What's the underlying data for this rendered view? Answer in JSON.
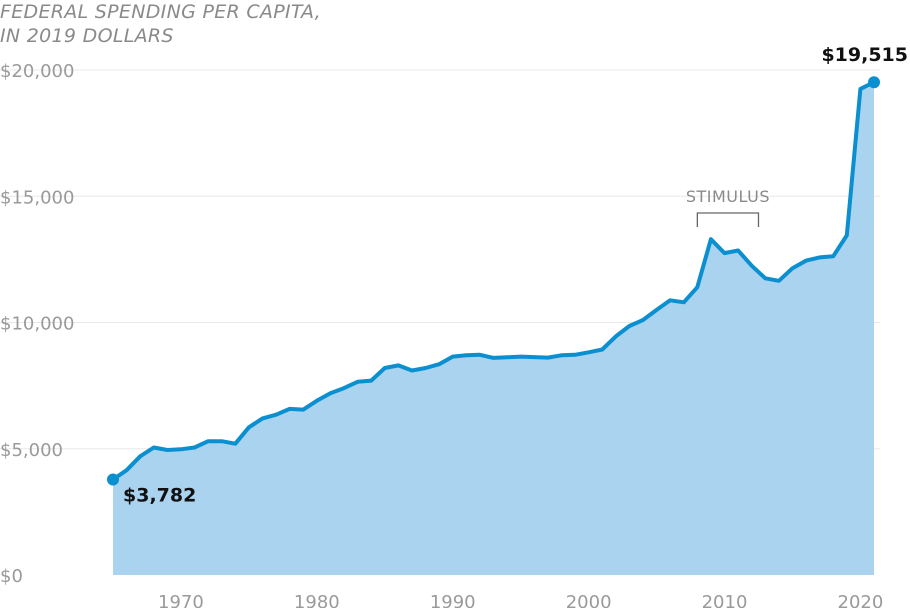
{
  "title_line1": "FEDERAL SPENDING PER CAPITA,",
  "title_line2": "IN 2019 DOLLARS",
  "colors": {
    "line": "#0a8fd0",
    "fill": "#a9d3ef",
    "grid": "#e8e8e8",
    "tick": "#9a9a9a"
  },
  "chart_data": {
    "type": "area",
    "title": "FEDERAL SPENDING PER CAPITA, IN 2019 DOLLARS",
    "xlabel": "",
    "ylabel": "",
    "xlim": [
      1965,
      2021
    ],
    "ylim": [
      0,
      20000
    ],
    "y_ticks": [
      0,
      5000,
      10000,
      15000,
      20000
    ],
    "y_tick_labels": [
      "$0",
      "$5,000",
      "$10,000",
      "$15,000",
      "$20,000"
    ],
    "x_ticks": [
      1970,
      1980,
      1990,
      2000,
      2010,
      2020
    ],
    "x_tick_labels": [
      "1970",
      "1980",
      "1990",
      "2000",
      "2010",
      "2020"
    ],
    "grid": true,
    "series": [
      {
        "x": [
          1965,
          1966,
          1967,
          1968,
          1969,
          1970,
          1971,
          1972,
          1973,
          1974,
          1975,
          1976,
          1977,
          1978,
          1979,
          1980,
          1981,
          1982,
          1983,
          1984,
          1985,
          1986,
          1987,
          1988,
          1989,
          1990,
          1991,
          1992,
          1993,
          1994,
          1995,
          1996,
          1997,
          1998,
          1999,
          2000,
          2001,
          2002,
          2003,
          2004,
          2005,
          2006,
          2007,
          2008,
          2009,
          2010,
          2011,
          2012,
          2013,
          2014,
          2015,
          2016,
          2017,
          2018,
          2019,
          2020,
          2021
        ],
        "values": [
          3782,
          4150,
          4700,
          5050,
          4950,
          4980,
          5050,
          5300,
          5300,
          5200,
          5850,
          6200,
          6350,
          6580,
          6550,
          6900,
          7200,
          7400,
          7650,
          7700,
          8200,
          8300,
          8100,
          8200,
          8350,
          8650,
          8700,
          8720,
          8600,
          8620,
          8650,
          8630,
          8610,
          8700,
          8720,
          8820,
          8930,
          9450,
          9860,
          10100,
          10500,
          10880,
          10800,
          11400,
          13300,
          12750,
          12850,
          12250,
          11750,
          11650,
          12150,
          12450,
          12580,
          12620,
          13450,
          19250,
          19515
        ]
      }
    ],
    "annotations": [
      {
        "text": "$3,782",
        "x": 1965,
        "y": 3782
      },
      {
        "text": "$19,515",
        "x": 2021,
        "y": 19515
      },
      {
        "text": "STIMULUS",
        "x_start": 2008,
        "x_end": 2012.5
      }
    ]
  }
}
